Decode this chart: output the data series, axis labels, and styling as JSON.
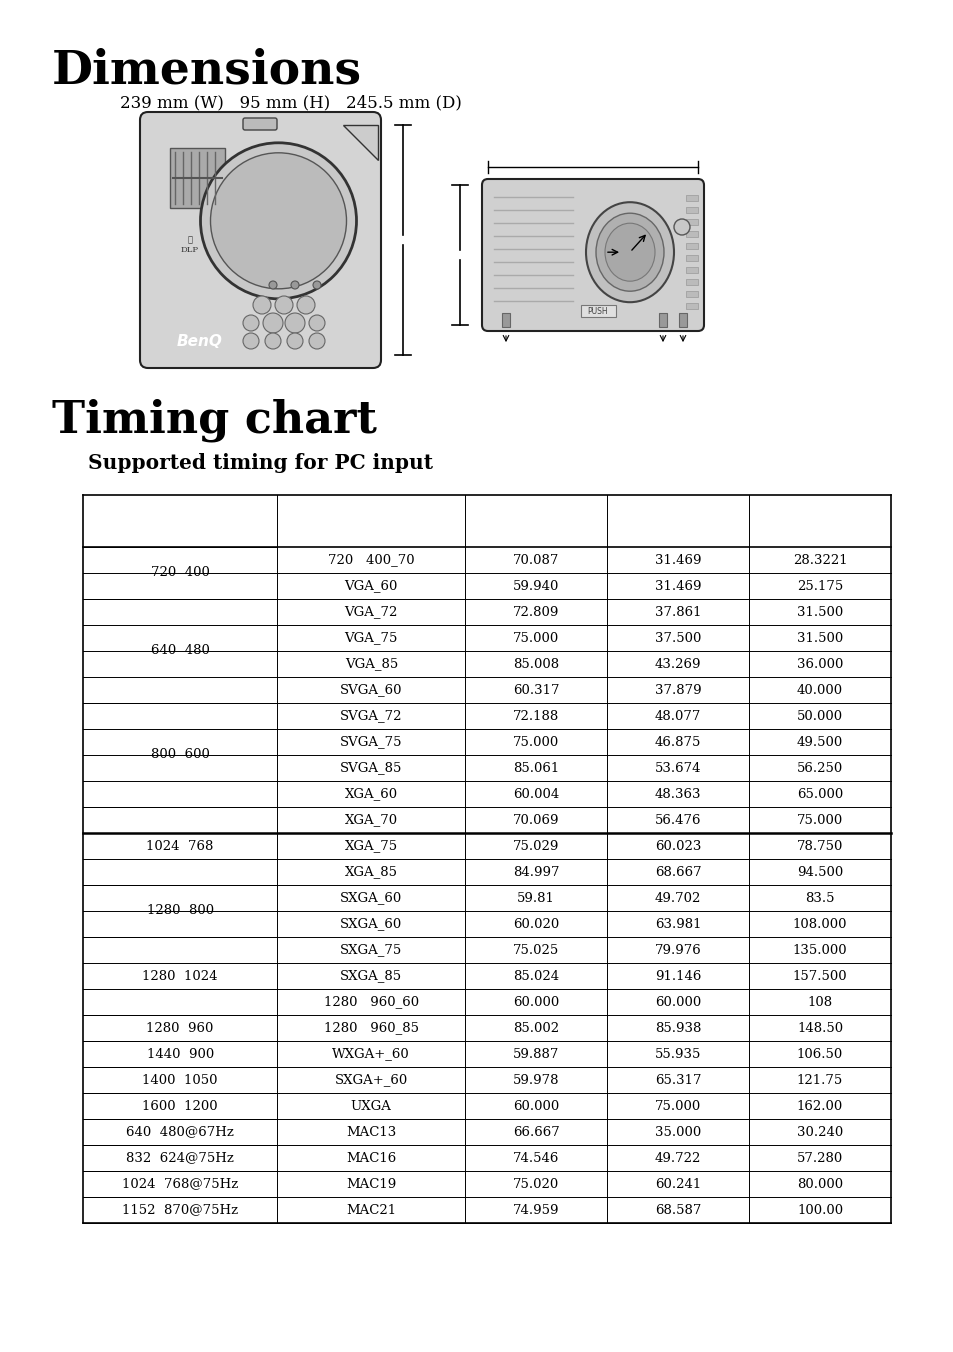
{
  "title_dimensions": "Dimensions",
  "dimensions_text": "239 mm (W)   95 mm (H)   245.5 mm (D)",
  "title_timing": "Timing chart",
  "subtitle_timing": "Supported timing for PC input",
  "table_rows": [
    [
      "720  400",
      "720   400_70",
      "70.087",
      "31.469",
      "28.3221"
    ],
    [
      "",
      "VGA_60",
      "59.940",
      "31.469",
      "25.175"
    ],
    [
      "640  480",
      "VGA_72",
      "72.809",
      "37.861",
      "31.500"
    ],
    [
      "",
      "VGA_75",
      "75.000",
      "37.500",
      "31.500"
    ],
    [
      "",
      "VGA_85",
      "85.008",
      "43.269",
      "36.000"
    ],
    [
      "",
      "SVGA_60",
      "60.317",
      "37.879",
      "40.000"
    ],
    [
      "800  600",
      "SVGA_72",
      "72.188",
      "48.077",
      "50.000"
    ],
    [
      "",
      "SVGA_75",
      "75.000",
      "46.875",
      "49.500"
    ],
    [
      "",
      "SVGA_85",
      "85.061",
      "53.674",
      "56.250"
    ],
    [
      "",
      "XGA_60",
      "60.004",
      "48.363",
      "65.000"
    ],
    [
      "1024  768",
      "XGA_70",
      "70.069",
      "56.476",
      "75.000"
    ],
    [
      "",
      "XGA_75",
      "75.029",
      "60.023",
      "78.750"
    ],
    [
      "",
      "XGA_85",
      "84.997",
      "68.667",
      "94.500"
    ],
    [
      "1280  800",
      "SXGA_60",
      "59.81",
      "49.702",
      "83.5"
    ],
    [
      "",
      "SXGA_60",
      "60.020",
      "63.981",
      "108.000"
    ],
    [
      "1280  1024",
      "SXGA_75",
      "75.025",
      "79.976",
      "135.000"
    ],
    [
      "",
      "SXGA_85",
      "85.024",
      "91.146",
      "157.500"
    ],
    [
      "",
      "1280   960_60",
      "60.000",
      "60.000",
      "108"
    ],
    [
      "1280  960",
      "1280   960_85",
      "85.002",
      "85.938",
      "148.50"
    ],
    [
      "1440  900",
      "WXGA+_60",
      "59.887",
      "55.935",
      "106.50"
    ],
    [
      "1400  1050",
      "SXGA+_60",
      "59.978",
      "65.317",
      "121.75"
    ],
    [
      "1600  1200",
      "UXGA",
      "60.000",
      "75.000",
      "162.00"
    ],
    [
      "640  480@67Hz",
      "MAC13",
      "66.667",
      "35.000",
      "30.240"
    ],
    [
      "832  624@75Hz",
      "MAC16",
      "74.546",
      "49.722",
      "57.280"
    ],
    [
      "1024  768@75Hz",
      "MAC19",
      "75.020",
      "60.241",
      "80.000"
    ],
    [
      "1152  870@75Hz",
      "MAC21",
      "74.959",
      "68.587",
      "100.00"
    ]
  ],
  "thick_border_after_row": 10,
  "background_color": "#ffffff",
  "text_color": "#000000"
}
